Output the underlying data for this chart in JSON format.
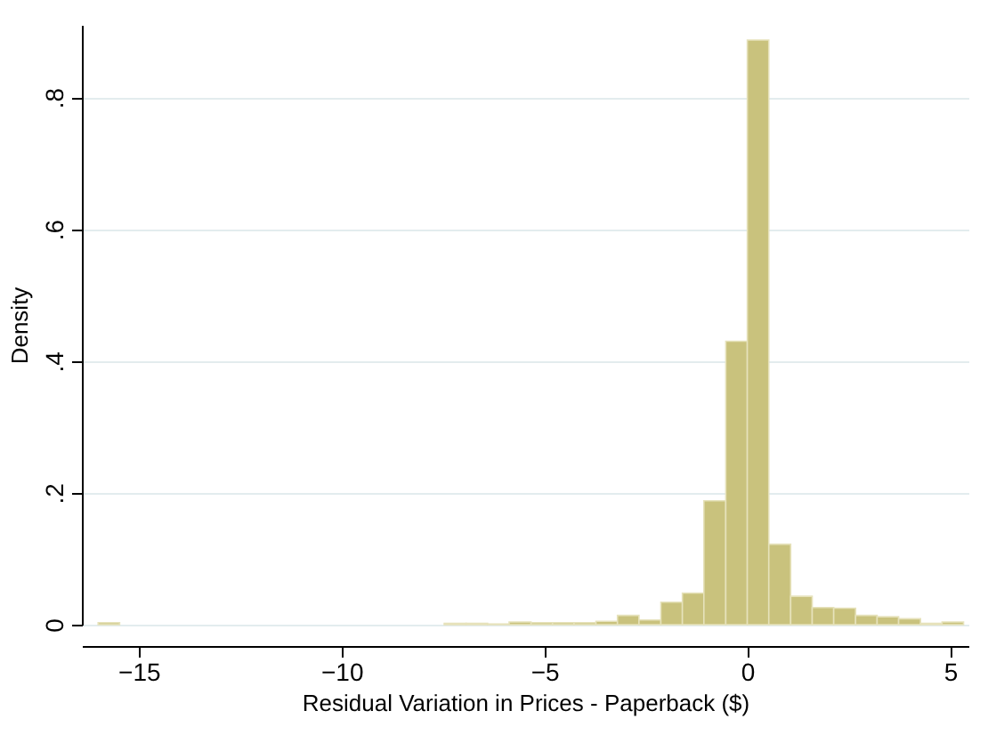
{
  "chart_data": {
    "type": "histogram",
    "xlabel": "Residual Variation in Prices - Paperback ($)",
    "ylabel": "Density",
    "bins": [
      -16.0,
      -15.47,
      -14.93,
      -14.4,
      -13.87,
      -13.33,
      -12.8,
      -12.27,
      -11.73,
      -11.2,
      -10.67,
      -10.13,
      -9.6,
      -9.07,
      -8.53,
      -8.0,
      -7.47,
      -6.93,
      -6.4,
      -5.87,
      -5.33,
      -4.8,
      -4.27,
      -3.73,
      -3.2,
      -2.67,
      -2.13,
      -1.6,
      -1.07,
      -0.53,
      0.0,
      0.53,
      1.07,
      1.6,
      2.13,
      2.67,
      3.2,
      3.73,
      4.27,
      4.8,
      5.33
    ],
    "values": [
      0.003,
      0,
      0,
      0,
      0,
      0,
      0,
      0,
      0,
      0,
      0,
      0,
      0,
      0,
      0,
      0,
      0.002,
      0.002,
      0.001,
      0.004,
      0.003,
      0.003,
      0.003,
      0.005,
      0.014,
      0.007,
      0.034,
      0.048,
      0.188,
      0.43,
      0.887,
      0.122,
      0.043,
      0.026,
      0.025,
      0.014,
      0.012,
      0.009,
      0.002,
      0.004
    ],
    "color": "#c9c27d",
    "xlim": [
      -16.4,
      5.45
    ],
    "ylim": [
      0,
      0.91
    ],
    "xticks": [
      -15,
      -10,
      -5,
      0,
      5
    ],
    "yticks": [
      {
        "value": 0,
        "label": "0"
      },
      {
        "value": 0.2,
        "label": ".2"
      },
      {
        "value": 0.4,
        "label": ".4"
      },
      {
        "value": 0.6,
        "label": ".6"
      },
      {
        "value": 0.8,
        "label": ".8"
      }
    ],
    "grid": "y"
  }
}
